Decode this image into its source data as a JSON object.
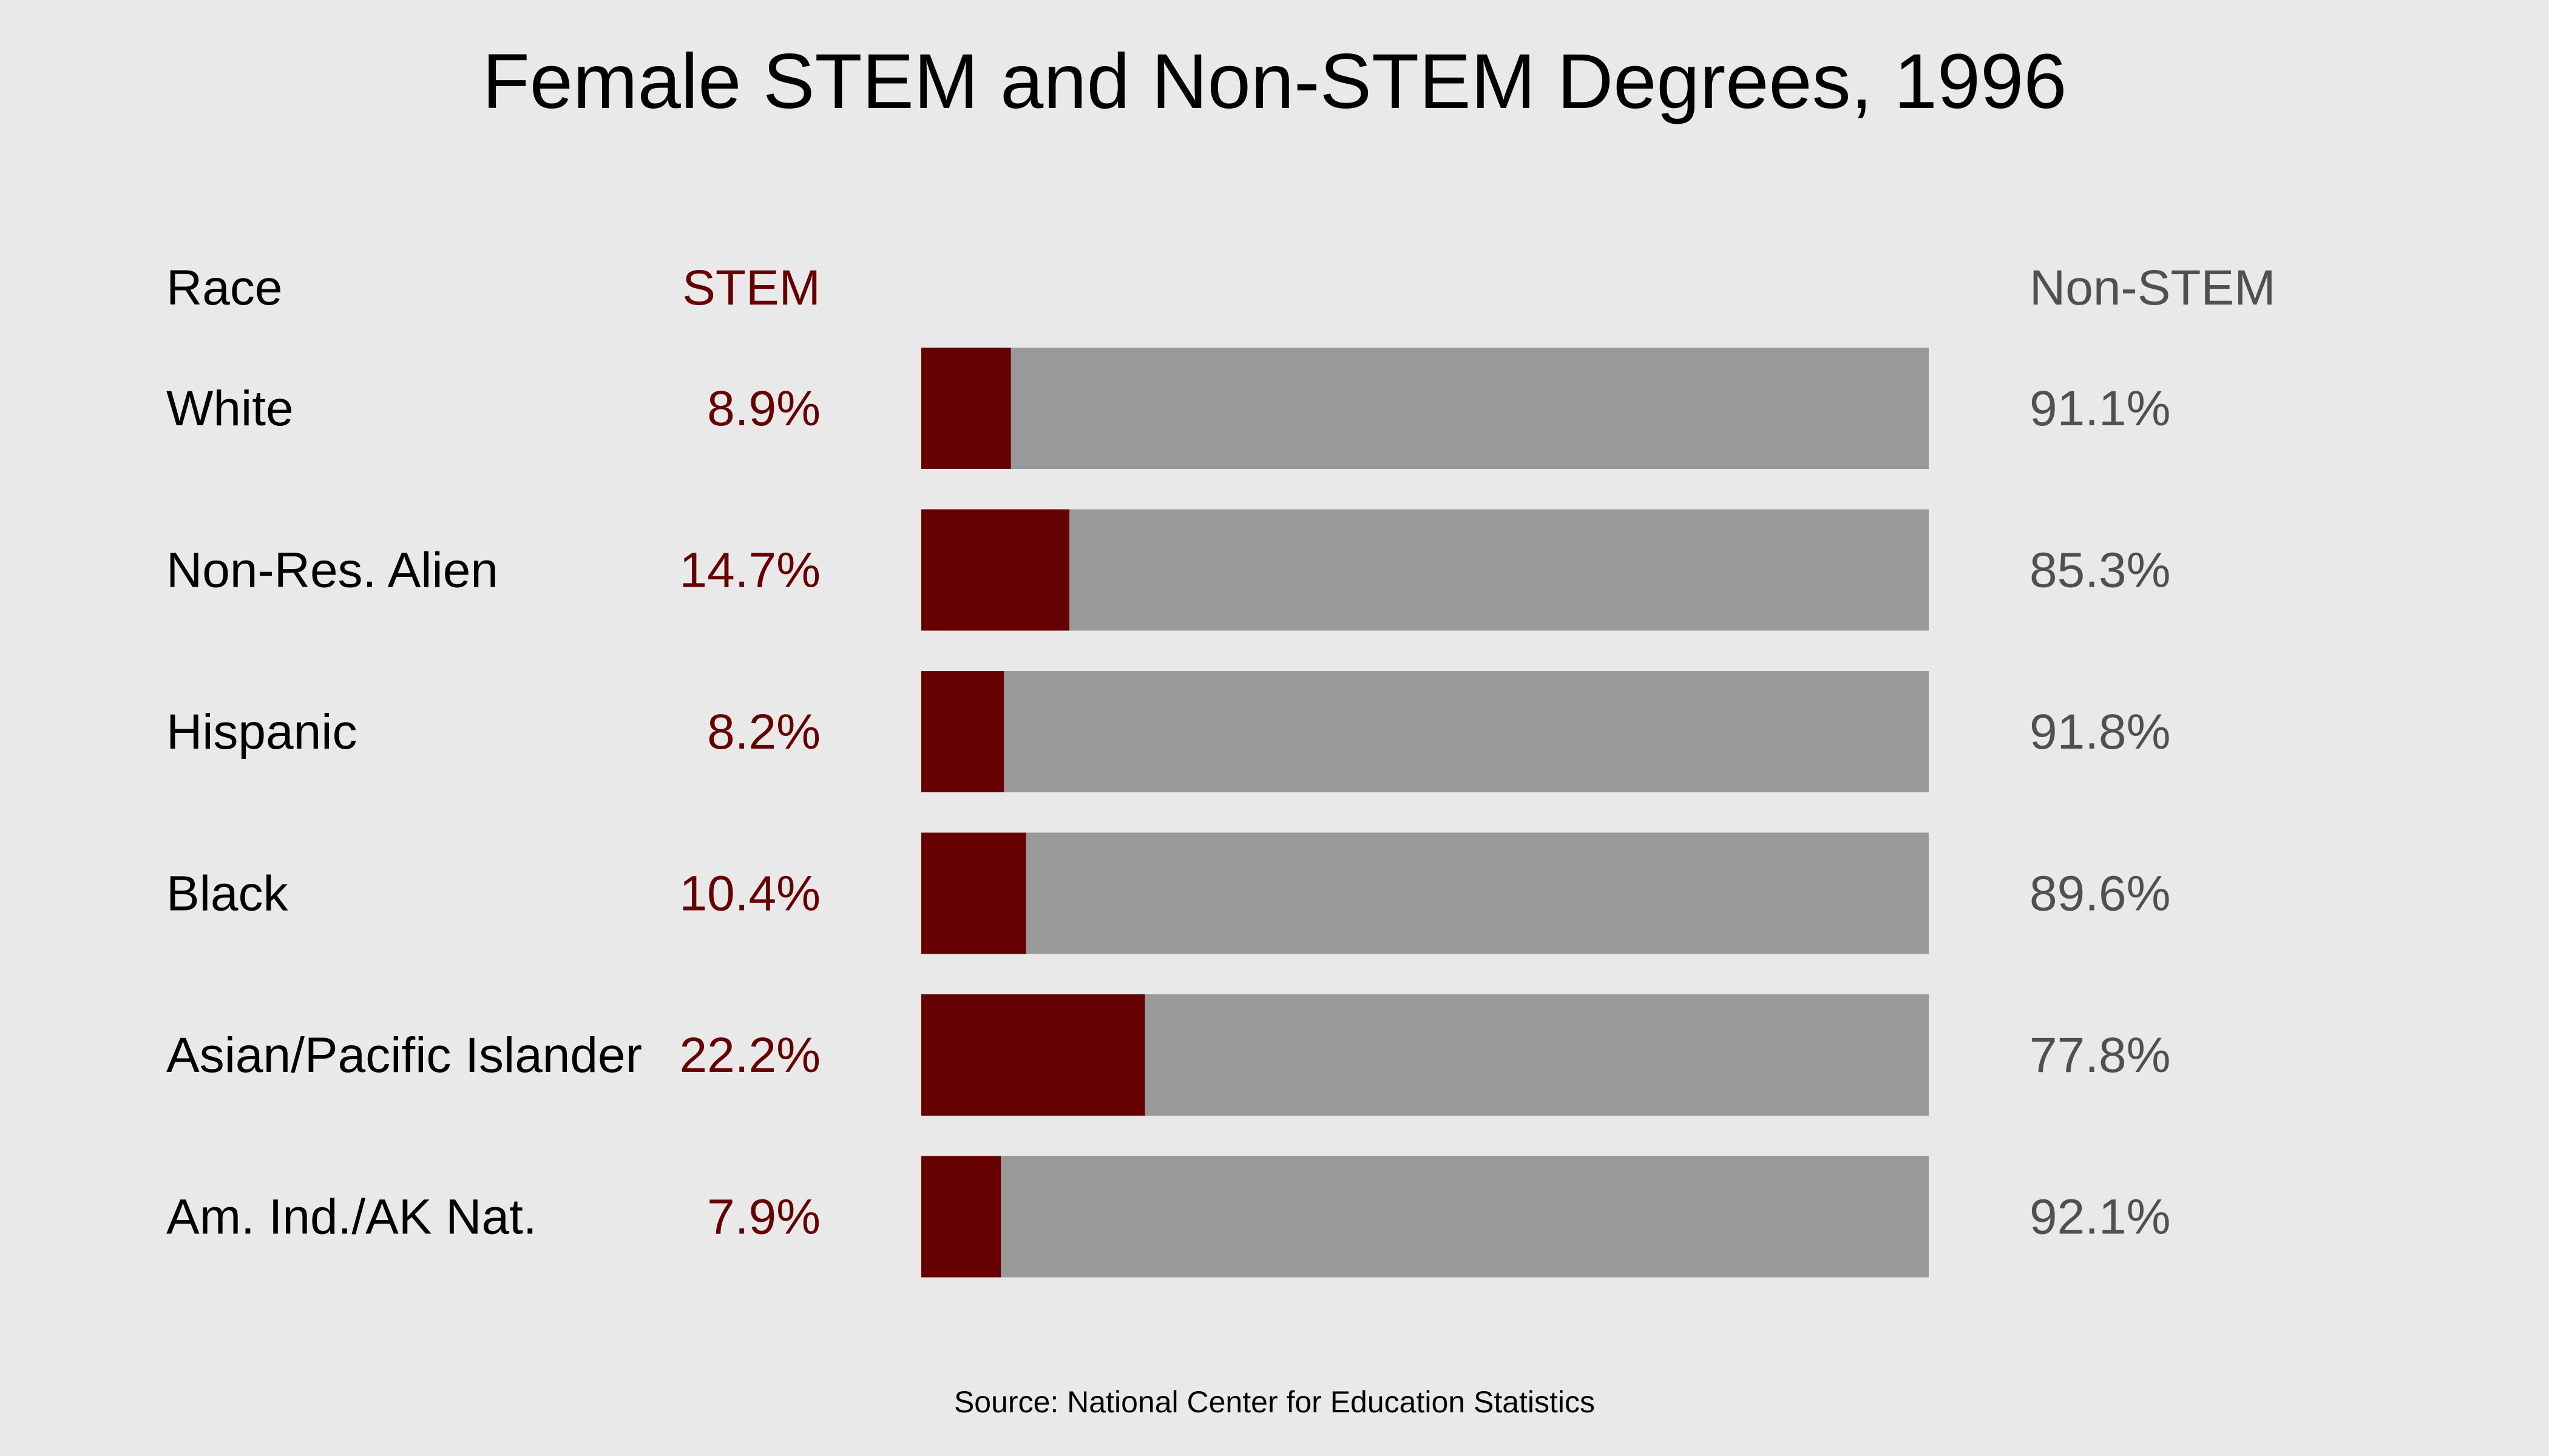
{
  "chart_data": {
    "type": "bar",
    "stacked": true,
    "orientation": "horizontal",
    "title": "Female STEM and Non-STEM Degrees, 1996",
    "source": "Source: National Center for Education Statistics",
    "headers": {
      "race": "Race",
      "stem": "STEM",
      "non_stem": "Non-STEM"
    },
    "categories": [
      "White",
      "Non-Res. Alien",
      "Hispanic",
      "Black",
      "Asian/Pacific Islander",
      "Am. Ind./AK Nat."
    ],
    "series": [
      {
        "name": "STEM",
        "color": "#660000",
        "values": [
          8.9,
          14.7,
          8.2,
          10.4,
          22.2,
          7.9
        ],
        "labels": [
          "8.9%",
          "14.7%",
          "8.2%",
          "10.4%",
          "22.2%",
          "7.9%"
        ]
      },
      {
        "name": "Non-STEM",
        "color": "#999999",
        "values": [
          91.1,
          85.3,
          91.8,
          89.6,
          77.8,
          92.1
        ],
        "labels": [
          "91.1%",
          "85.3%",
          "91.8%",
          "89.6%",
          "77.8%",
          "92.1%"
        ]
      }
    ],
    "xlim": [
      0,
      100
    ],
    "colors": {
      "background": "#e9e9e9",
      "stem_text": "#660000",
      "non_stem_text": "#505050"
    }
  }
}
